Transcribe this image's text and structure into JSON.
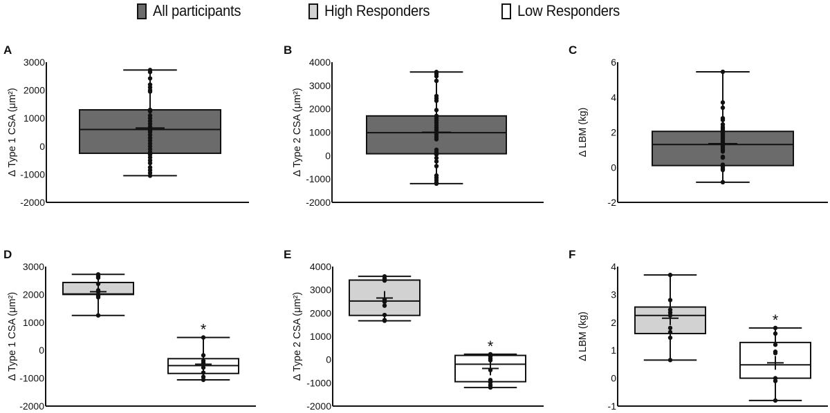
{
  "legend": [
    {
      "label": "All participants",
      "color": "#6b6b6b"
    },
    {
      "label": "High Responders",
      "color": "#d2d2d2"
    },
    {
      "label": "Low Responders",
      "color": "#ffffff"
    }
  ],
  "chart_data": [
    {
      "panel": "A",
      "type": "box",
      "ylabel": "Δ Type 1 CSA (μm²)",
      "ylim": [
        -2000,
        3000
      ],
      "yticks": [
        -2000,
        -1000,
        0,
        1000,
        2000,
        3000
      ],
      "groups": [
        {
          "name": "All participants",
          "color": "#6b6b6b",
          "q1": -250,
          "median": 600,
          "q3": 1300,
          "mean": 650,
          "whisker_low": -1050,
          "whisker_high": 2720,
          "significant": false,
          "points": [
            2720,
            2650,
            2420,
            2200,
            2100,
            2000,
            1950,
            1300,
            1250,
            1100,
            1000,
            900,
            800,
            700,
            650,
            600,
            550,
            500,
            400,
            300,
            200,
            100,
            0,
            -100,
            -200,
            -300,
            -400,
            -500,
            -600,
            -750,
            -850,
            -950,
            -1050
          ]
        }
      ]
    },
    {
      "panel": "B",
      "type": "box",
      "ylabel": "Δ Type 2 CSA (μm²)",
      "ylim": [
        -2000,
        4000
      ],
      "yticks": [
        -2000,
        -1000,
        0,
        1000,
        2000,
        3000,
        4000
      ],
      "groups": [
        {
          "name": "All participants",
          "color": "#6b6b6b",
          "q1": 80,
          "median": 980,
          "q3": 1700,
          "mean": 1000,
          "whisker_low": -1200,
          "whisker_high": 3580,
          "significant": false,
          "points": [
            3580,
            3500,
            3400,
            3200,
            2550,
            2450,
            2350,
            1950,
            1700,
            1600,
            1500,
            1400,
            1300,
            1200,
            1100,
            1000,
            900,
            800,
            700,
            250,
            150,
            50,
            -100,
            -250,
            -450,
            -850,
            -950,
            -1050,
            -1150,
            -1200
          ]
        }
      ]
    },
    {
      "panel": "C",
      "type": "box",
      "ylabel": "Δ LBM (kg)",
      "ylim": [
        -2,
        6
      ],
      "yticks": [
        -2,
        0,
        2,
        4,
        6
      ],
      "groups": [
        {
          "name": "All participants",
          "color": "#6b6b6b",
          "q1": 0.1,
          "median": 1.3,
          "q3": 2.05,
          "mean": 1.35,
          "whisker_low": -0.85,
          "whisker_high": 5.45,
          "significant": false,
          "points": [
            5.45,
            3.7,
            3.4,
            2.8,
            2.7,
            2.45,
            2.3,
            2.2,
            2.1,
            2.0,
            1.9,
            1.8,
            1.7,
            1.6,
            1.5,
            1.4,
            1.3,
            1.2,
            1.1,
            1.0,
            0.9,
            0.6,
            0.55,
            0.15,
            0.05,
            -0.05,
            -0.15,
            -0.85
          ]
        }
      ]
    },
    {
      "panel": "D",
      "type": "box",
      "ylabel": "Δ Type 1 CSA (μm²)",
      "ylim": [
        -2000,
        3000
      ],
      "yticks": [
        -2000,
        -1000,
        0,
        1000,
        2000,
        3000
      ],
      "groups": [
        {
          "name": "High Responders",
          "color": "#d2d2d2",
          "q1": 2000,
          "median": 2020,
          "q3": 2430,
          "mean": 2100,
          "whisker_low": 1250,
          "whisker_high": 2720,
          "significant": false,
          "points": [
            2720,
            2650,
            2600,
            2380,
            2150,
            2100,
            2000,
            1950,
            1900,
            1250
          ]
        },
        {
          "name": "Low Responders",
          "color": "#ffffff",
          "q1": -830,
          "median": -550,
          "q3": -300,
          "mean": -500,
          "whisker_low": -1060,
          "whisker_high": 460,
          "significant": true,
          "points": [
            460,
            -180,
            -380,
            -450,
            -620,
            -800,
            -950,
            -1060
          ]
        }
      ]
    },
    {
      "panel": "E",
      "type": "box",
      "ylabel": "Δ Type 2 CSA (μm²)",
      "ylim": [
        -2000,
        4000
      ],
      "yticks": [
        -2000,
        -1000,
        0,
        1000,
        2000,
        3000,
        4000
      ],
      "groups": [
        {
          "name": "High Responders",
          "color": "#d2d2d2",
          "q1": 1900,
          "median": 2520,
          "q3": 3420,
          "mean": 2650,
          "whisker_low": 1670,
          "whisker_high": 3580,
          "significant": false,
          "points": [
            3580,
            3480,
            3400,
            2580,
            2480,
            2320,
            1920,
            1700,
            1670
          ]
        },
        {
          "name": "Low Responders",
          "color": "#ffffff",
          "q1": -950,
          "median": -200,
          "q3": 180,
          "mean": -380,
          "whisker_low": -1200,
          "whisker_high": 230,
          "significant": true,
          "points": [
            230,
            150,
            50,
            -30,
            -450,
            -880,
            -980,
            -1100,
            -1200
          ]
        }
      ]
    },
    {
      "panel": "F",
      "type": "box",
      "ylabel": "Δ LBM (kg)",
      "ylim": [
        -1,
        4
      ],
      "yticks": [
        -1,
        0,
        1,
        2,
        3,
        4
      ],
      "groups": [
        {
          "name": "High Responders",
          "color": "#d2d2d2",
          "q1": 1.6,
          "median": 2.25,
          "q3": 2.55,
          "mean": 2.15,
          "whisker_low": 0.65,
          "whisker_high": 3.7,
          "significant": false,
          "points": [
            3.7,
            2.8,
            2.45,
            2.35,
            2.25,
            1.8,
            1.65,
            1.45,
            0.65
          ]
        },
        {
          "name": "Low Responders",
          "color": "#ffffff",
          "q1": 0.0,
          "median": 0.48,
          "q3": 1.28,
          "mean": 0.55,
          "whisker_low": -0.8,
          "whisker_high": 1.8,
          "significant": true,
          "points": [
            1.8,
            1.6,
            1.2,
            0.95,
            0.9,
            0.0,
            -0.1,
            -0.8
          ]
        }
      ]
    }
  ],
  "significance_marker": "*"
}
